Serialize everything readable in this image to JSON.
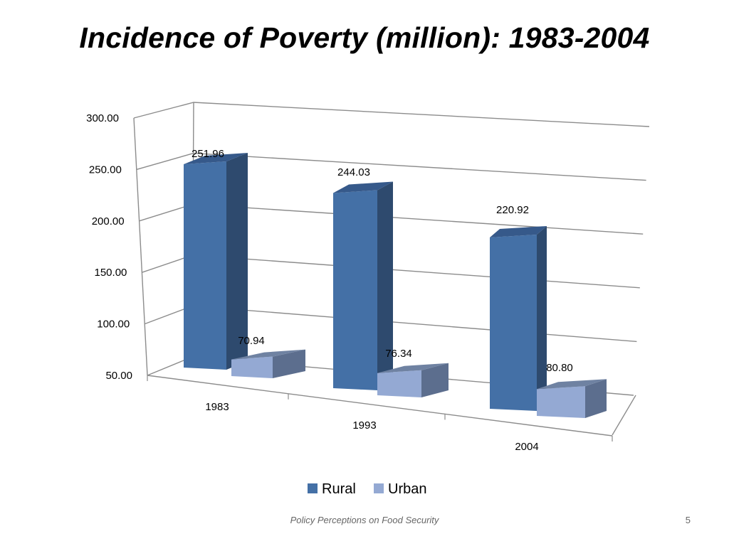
{
  "slide": {
    "title": "Incidence of Poverty (million): 1983-2004",
    "footer": "Policy Perceptions on Food Security",
    "page_number": "5"
  },
  "colors": {
    "rural_front": "#4470A6",
    "rural_side": "#2E4A6E",
    "rural_top": "#36598A",
    "urban_front": "#94A9D3",
    "urban_side": "#5C6E8E",
    "urban_top": "#6F82A2",
    "grid": "#8C8C8C",
    "text": "#000000"
  },
  "chart_data": {
    "type": "bar",
    "style": "3d-clustered-column",
    "categories": [
      "1983",
      "1993",
      "2004"
    ],
    "series": [
      {
        "name": "Rural",
        "values": [
          251.96,
          244.03,
          220.92
        ],
        "labels": [
          "251.96",
          "244.03",
          "220.92"
        ]
      },
      {
        "name": "Urban",
        "values": [
          70.94,
          76.34,
          80.8
        ],
        "labels": [
          "70.94",
          "76.34",
          "80.80"
        ]
      }
    ],
    "ylim": [
      50,
      300
    ],
    "yticks": [
      50,
      100,
      150,
      200,
      250,
      300
    ],
    "ytick_labels": [
      "50.00",
      "100.00",
      "150.00",
      "200.00",
      "250.00",
      "300.00"
    ],
    "grid": true,
    "legend_position": "bottom"
  }
}
